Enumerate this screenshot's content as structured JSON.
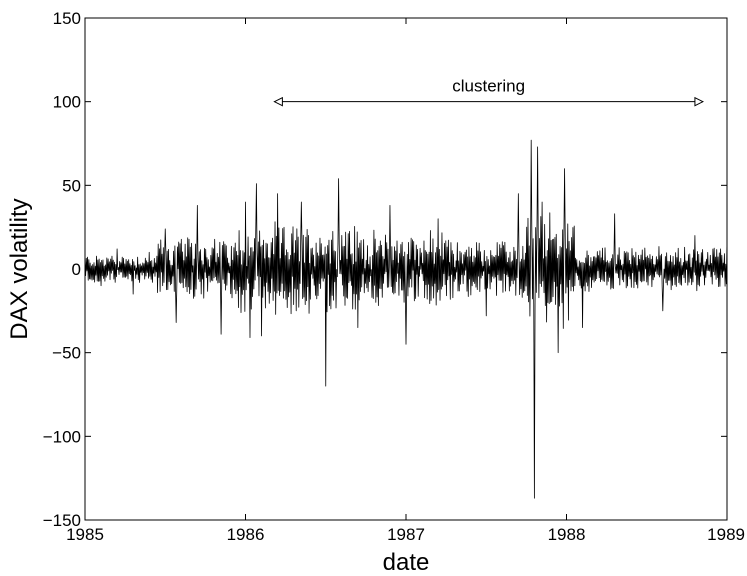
{
  "chart_data": {
    "type": "line",
    "title": "",
    "xlabel": "date",
    "ylabel": "DAX volatility",
    "xlim": [
      1985,
      1989
    ],
    "ylim": [
      -150,
      150
    ],
    "xticks": [
      1985,
      1986,
      1987,
      1988,
      1989
    ],
    "xtick_labels": [
      "1985",
      "1986",
      "1987",
      "1988",
      "1989"
    ],
    "yticks": [
      -150,
      -100,
      -50,
      0,
      50,
      100,
      150
    ],
    "ytick_labels": [
      "−150",
      "−100",
      "−50",
      "0",
      "50",
      "100",
      "150"
    ],
    "grid": false,
    "legend": "none",
    "line_color": "#000000",
    "annotation": {
      "text": "clustering",
      "type": "double-arrow",
      "x_start": 1986.18,
      "x_end": 1988.85,
      "y": 100
    },
    "series": [
      {
        "x": [
          1985.0,
          1985.1,
          1985.2,
          1985.3,
          1985.4,
          1985.5,
          1985.57,
          1985.7,
          1985.85,
          1986.0,
          1986.03,
          1986.07,
          1986.1,
          1986.2,
          1986.35,
          1986.5,
          1986.58,
          1986.7,
          1986.9,
          1987.0,
          1987.2,
          1987.5,
          1987.7,
          1987.78,
          1987.8,
          1987.82,
          1987.85,
          1987.95,
          1987.99,
          1988.1,
          1988.3,
          1988.6,
          1988.8,
          1989.0
        ],
        "y": [
          5,
          -10,
          12,
          -15,
          10,
          24,
          -32,
          38,
          -39,
          40,
          -41,
          51,
          -40,
          45,
          40,
          -70,
          54,
          -35,
          38,
          -45,
          30,
          -28,
          45,
          77,
          -137,
          73,
          40,
          -50,
          60,
          -35,
          33,
          -25,
          20,
          18
        ],
        "noise_amplitude": [
          {
            "x_start": 1985.0,
            "x_end": 1985.45,
            "amp": 8
          },
          {
            "x_start": 1985.45,
            "x_end": 1985.95,
            "amp": 17
          },
          {
            "x_start": 1985.95,
            "x_end": 1986.7,
            "amp": 24
          },
          {
            "x_start": 1986.7,
            "x_end": 1987.3,
            "amp": 20
          },
          {
            "x_start": 1987.3,
            "x_end": 1987.75,
            "amp": 15
          },
          {
            "x_start": 1987.75,
            "x_end": 1988.05,
            "amp": 30
          },
          {
            "x_start": 1988.05,
            "x_end": 1989.0,
            "amp": 12
          }
        ]
      }
    ]
  }
}
